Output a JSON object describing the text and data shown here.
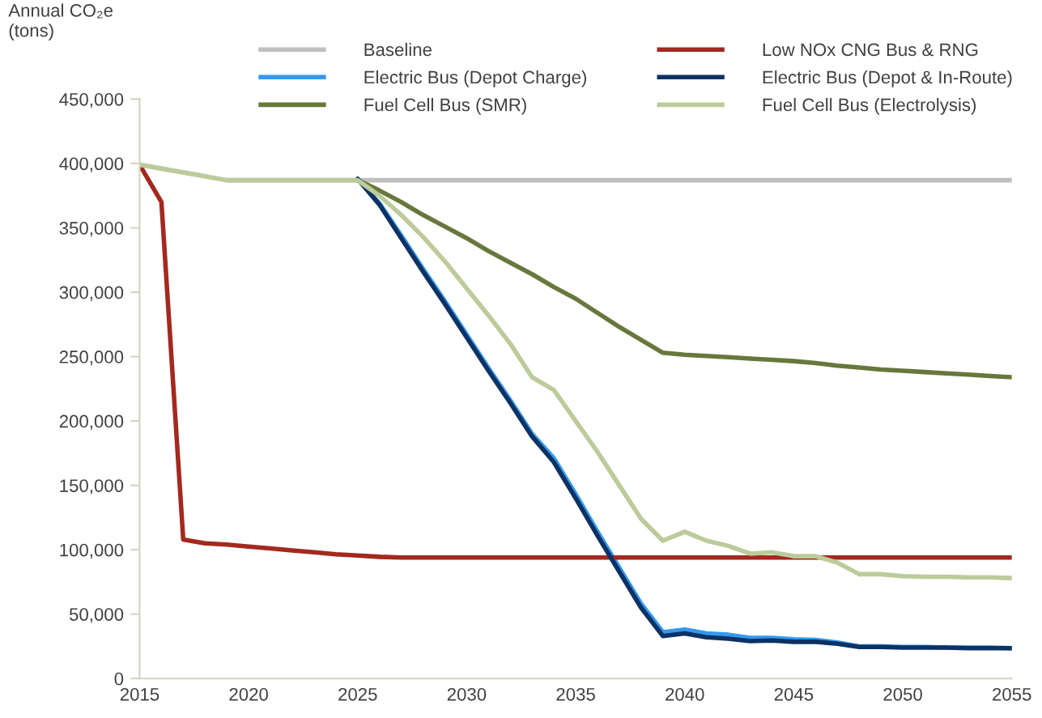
{
  "chart_data": {
    "type": "line",
    "ylabel": "Annual CO₂e\n(tons)",
    "x": [
      2015,
      2016,
      2017,
      2018,
      2019,
      2020,
      2021,
      2022,
      2023,
      2024,
      2025,
      2026,
      2027,
      2028,
      2029,
      2030,
      2031,
      2032,
      2033,
      2034,
      2035,
      2036,
      2037,
      2038,
      2039,
      2040,
      2041,
      2042,
      2043,
      2044,
      2045,
      2046,
      2047,
      2048,
      2049,
      2050,
      2051,
      2052,
      2053,
      2054,
      2055
    ],
    "xlim": [
      2015,
      2055
    ],
    "xticks": [
      2015,
      2020,
      2025,
      2030,
      2035,
      2040,
      2045,
      2050,
      2055
    ],
    "ylim": [
      0,
      450000
    ],
    "yticks": [
      {
        "value": 0,
        "label": "0"
      },
      {
        "value": 50000,
        "label": "50,000"
      },
      {
        "value": 100000,
        "label": "100,000"
      },
      {
        "value": 150000,
        "label": "150,000"
      },
      {
        "value": 200000,
        "label": "200,000"
      },
      {
        "value": 250000,
        "label": "250,000"
      },
      {
        "value": 300000,
        "label": "300,000"
      },
      {
        "value": 350000,
        "label": "350,000"
      },
      {
        "value": 400000,
        "label": "400,000"
      },
      {
        "value": 450000,
        "label": "450,000"
      }
    ],
    "grid": false,
    "legend": "top",
    "marker": "none",
    "line_style": "solid",
    "series": [
      {
        "name": "Baseline",
        "color": "#bfbfbf",
        "values": [
          399000,
          396000,
          393000,
          390000,
          387000,
          387000,
          387000,
          387000,
          387000,
          387000,
          387000,
          387000,
          387000,
          387000,
          387000,
          387000,
          387000,
          387000,
          387000,
          387000,
          387000,
          387000,
          387000,
          387000,
          387000,
          387000,
          387000,
          387000,
          387000,
          387000,
          387000,
          387000,
          387000,
          387000,
          387000,
          387000,
          387000,
          387000,
          387000,
          387000,
          387000
        ]
      },
      {
        "name": "Electric Bus (Depot Charge)",
        "color": "#3399f0",
        "values": [
          null,
          null,
          null,
          null,
          null,
          null,
          null,
          null,
          null,
          null,
          388000,
          369000,
          344000,
          318000,
          293000,
          267000,
          241000,
          216000,
          190000,
          171000,
          143000,
          114000,
          86000,
          58000,
          36000,
          38000,
          35000,
          34000,
          31500,
          31500,
          30500,
          30000,
          28000,
          25000,
          25000,
          24500,
          24500,
          24000,
          24000,
          24000,
          23500
        ]
      },
      {
        "name": "Fuel Cell Bus (SMR)",
        "color": "#67783c",
        "values": [
          null,
          null,
          null,
          null,
          null,
          null,
          null,
          null,
          null,
          null,
          387000,
          379000,
          370000,
          360000,
          351000,
          342000,
          332000,
          323000,
          314000,
          304000,
          295000,
          284000,
          273000,
          263000,
          253000,
          251500,
          250500,
          249500,
          248500,
          247500,
          246500,
          245000,
          243000,
          241500,
          240000,
          239000,
          238000,
          237000,
          236000,
          235000,
          234000
        ]
      },
      {
        "name": "Low NOx CNG Bus & RNG",
        "color": "#a3291f",
        "values": [
          399000,
          370000,
          108000,
          105000,
          104000,
          102500,
          101000,
          99500,
          98000,
          96500,
          95500,
          94500,
          94000,
          94000,
          94000,
          94000,
          94000,
          94000,
          94000,
          94000,
          94000,
          94000,
          94000,
          94000,
          94000,
          94000,
          94000,
          94000,
          94000,
          94000,
          94000,
          94000,
          94000,
          94000,
          94000,
          94000,
          94000,
          94000,
          94000,
          94000,
          94000
        ]
      },
      {
        "name": "Electric Bus (Depot & In-Route)",
        "color": "#0d3263",
        "values": [
          null,
          null,
          null,
          null,
          null,
          null,
          null,
          null,
          null,
          null,
          388000,
          368000,
          342000,
          316000,
          291000,
          265000,
          239000,
          214000,
          188000,
          168000,
          140000,
          111000,
          83000,
          55000,
          33000,
          35000,
          32000,
          31000,
          29000,
          29500,
          28500,
          28500,
          27000,
          24500,
          24500,
          24000,
          24000,
          24000,
          23500,
          23500,
          23500
        ]
      },
      {
        "name": "Fuel Cell Bus (Electrolysis)",
        "color": "#bccb9a",
        "values": [
          399000,
          396000,
          393000,
          390000,
          387000,
          387000,
          387000,
          387000,
          387000,
          387000,
          387000,
          375000,
          360000,
          343000,
          324000,
          303000,
          282000,
          260000,
          234000,
          224000,
          200000,
          176000,
          150000,
          124000,
          107000,
          114000,
          107000,
          103000,
          97000,
          98000,
          95000,
          95000,
          90000,
          81000,
          81000,
          79500,
          79000,
          79000,
          78500,
          78500,
          78000
        ]
      }
    ]
  }
}
